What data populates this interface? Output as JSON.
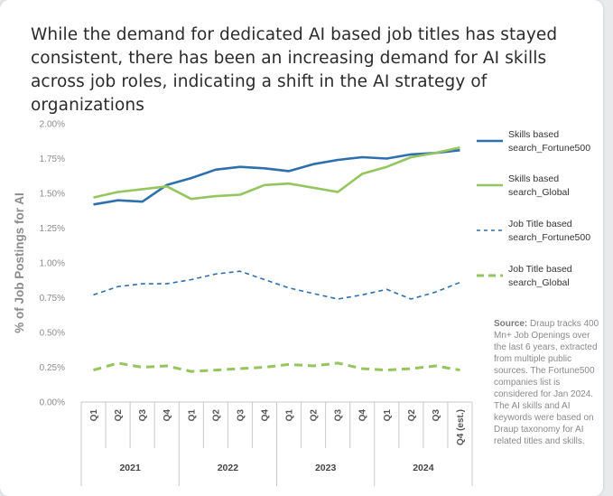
{
  "title": "While the demand for dedicated AI based job titles has stayed consistent, there has been an increasing demand for AI skills across job roles, indicating a shift in the AI strategy of organizations",
  "source": {
    "label": "Source:",
    "text": "Draup tracks 400 Mn+ Job Openings over the last 6 years, extracted from multiple public sources. The Fortune500 companies list is considered for Jan 2024. The AI skills and AI keywords were based on Draup taxonomy for AI related titles and skills."
  },
  "chart_data": {
    "type": "line",
    "ylabel": "% of Job Postings for AI",
    "ylim": [
      0,
      2.0
    ],
    "yticks": [
      0,
      0.25,
      0.5,
      0.75,
      1.0,
      1.25,
      1.5,
      1.75,
      2.0
    ],
    "ytick_labels": [
      "0.00%",
      "0.25%",
      "0.50%",
      "0.75%",
      "1.00%",
      "1.25%",
      "1.50%",
      "1.75%",
      "2.00%"
    ],
    "grid": false,
    "legend_position": "right",
    "categories": [
      "Q1",
      "Q2",
      "Q3",
      "Q4",
      "Q1",
      "Q2",
      "Q3",
      "Q4",
      "Q1",
      "Q2",
      "Q3",
      "Q4",
      "Q1",
      "Q2",
      "Q3",
      "Q4 (est.)"
    ],
    "groups": [
      {
        "label": "2021",
        "count": 4
      },
      {
        "label": "2022",
        "count": 4
      },
      {
        "label": "2023",
        "count": 4
      },
      {
        "label": "2024",
        "count": 4
      }
    ],
    "series": [
      {
        "name": "Skills based search_Fortune500",
        "color": "#2e6fad",
        "style": "solid",
        "values": [
          1.42,
          1.45,
          1.44,
          1.56,
          1.61,
          1.67,
          1.69,
          1.68,
          1.66,
          1.71,
          1.74,
          1.76,
          1.75,
          1.78,
          1.79,
          1.81
        ]
      },
      {
        "name": "Skills based search_Global",
        "color": "#95c55f",
        "style": "solid",
        "values": [
          1.47,
          1.51,
          1.53,
          1.55,
          1.46,
          1.48,
          1.49,
          1.56,
          1.57,
          1.54,
          1.51,
          1.64,
          1.69,
          1.76,
          1.79,
          1.83
        ]
      },
      {
        "name": "Job Title based search_Fortune500",
        "color": "#2e6fad",
        "style": "dashed",
        "values": [
          0.77,
          0.83,
          0.85,
          0.85,
          0.88,
          0.92,
          0.94,
          0.88,
          0.82,
          0.78,
          0.74,
          0.77,
          0.81,
          0.74,
          0.79,
          0.86
        ]
      },
      {
        "name": "Job Title based search_Global",
        "color": "#95c55f",
        "style": "dashed",
        "values": [
          0.23,
          0.28,
          0.25,
          0.26,
          0.22,
          0.23,
          0.24,
          0.25,
          0.27,
          0.26,
          0.28,
          0.24,
          0.23,
          0.24,
          0.26,
          0.23
        ]
      }
    ]
  }
}
